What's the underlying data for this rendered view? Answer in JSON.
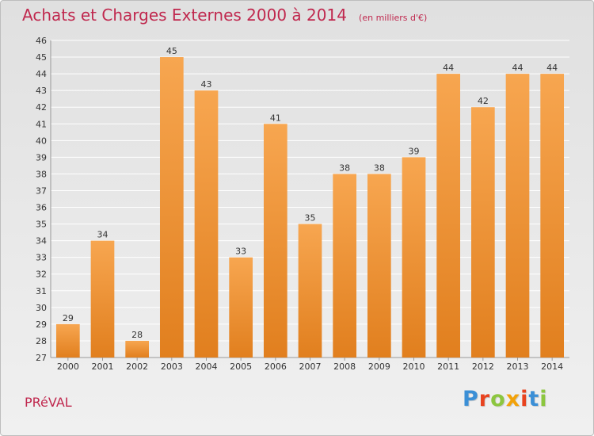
{
  "header": {
    "title": "Achats et Charges Externes 2000 à 2014",
    "subtitle": "(en milliers d'€)"
  },
  "footer": {
    "commune": "PRéVAL",
    "brand": "Proxiti"
  },
  "colors": {
    "title": "#c0284e",
    "bar_light": "#f7a650",
    "bar_dark": "#e17f1e",
    "grid": "#ffffff",
    "brand_letters": [
      "#3b8fd6",
      "#e8431f",
      "#8cc63f",
      "#f2a20a",
      "#e8431f",
      "#3b8fd6",
      "#8cc63f"
    ]
  },
  "chart_data": {
    "type": "bar",
    "categories": [
      "2000",
      "2001",
      "2002",
      "2003",
      "2004",
      "2005",
      "2006",
      "2007",
      "2008",
      "2009",
      "2010",
      "2011",
      "2012",
      "2013",
      "2014"
    ],
    "values": [
      29,
      34,
      28,
      45,
      43,
      33,
      41,
      35,
      38,
      38,
      39,
      44,
      42,
      44,
      44
    ],
    "title": "Achats et Charges Externes 2000 à 2014",
    "subtitle": "(en milliers d'€)",
    "xlabel": "",
    "ylabel": "",
    "ylim": [
      27,
      46
    ],
    "yticks": [
      27,
      28,
      29,
      30,
      31,
      32,
      33,
      34,
      35,
      36,
      37,
      38,
      39,
      40,
      41,
      42,
      43,
      44,
      45,
      46
    ],
    "grid": true,
    "data_labels": true
  }
}
